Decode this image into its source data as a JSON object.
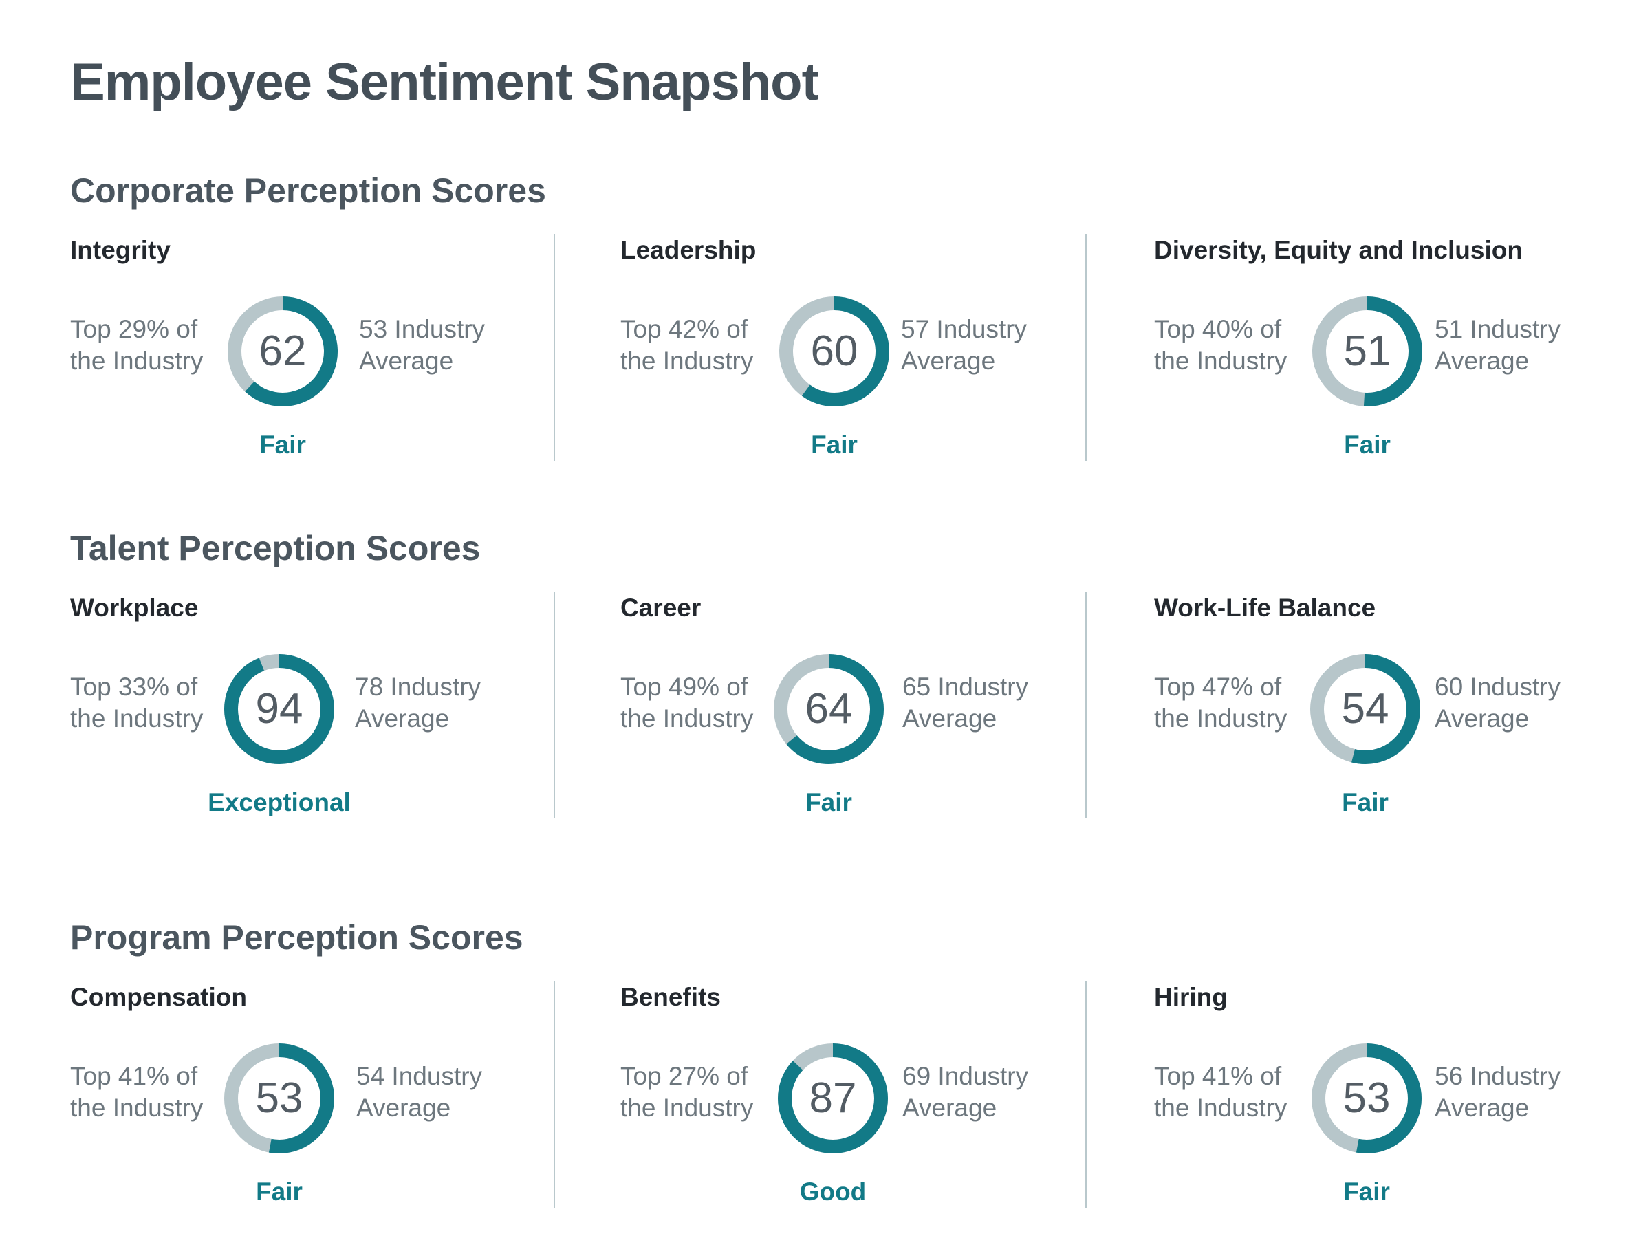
{
  "title": "Employee Sentiment Snapshot",
  "colors": {
    "accent": "#127a87",
    "track": "#b7c6ca",
    "divider": "#b9c8cc"
  },
  "sections": [
    {
      "title": "Corporate Perception Scores",
      "metrics": [
        {
          "name": "Integrity",
          "rank_line1": "Top 29% of",
          "rank_line2": "the Industry",
          "score": 62,
          "score_label": "62",
          "avg_line1": "53 Industry",
          "avg_line2": "Average",
          "rating": "Fair"
        },
        {
          "name": "Leadership",
          "rank_line1": "Top 42% of",
          "rank_line2": "the Industry",
          "score": 60,
          "score_label": "60",
          "avg_line1": "57 Industry",
          "avg_line2": "Average",
          "rating": "Fair"
        },
        {
          "name": "Diversity, Equity and Inclusion",
          "rank_line1": "Top 40% of",
          "rank_line2": "the Industry",
          "score": 51,
          "score_label": "51",
          "avg_line1": "51 Industry",
          "avg_line2": "Average",
          "rating": "Fair"
        }
      ]
    },
    {
      "title": "Talent Perception Scores",
      "metrics": [
        {
          "name": "Workplace",
          "rank_line1": "Top 33% of",
          "rank_line2": "the Industry",
          "score": 94,
          "score_label": "94",
          "avg_line1": "78 Industry",
          "avg_line2": "Average",
          "rating": "Exceptional"
        },
        {
          "name": "Career",
          "rank_line1": "Top 49% of",
          "rank_line2": "the Industry",
          "score": 64,
          "score_label": "64",
          "avg_line1": "65 Industry",
          "avg_line2": "Average",
          "rating": "Fair"
        },
        {
          "name": "Work-Life Balance",
          "rank_line1": "Top 47% of",
          "rank_line2": "the Industry",
          "score": 54,
          "score_label": "54",
          "avg_line1": "60 Industry",
          "avg_line2": "Average",
          "rating": "Fair"
        }
      ]
    },
    {
      "title": "Program Perception Scores",
      "metrics": [
        {
          "name": "Compensation",
          "rank_line1": "Top 41% of",
          "rank_line2": "the Industry",
          "score": 53,
          "score_label": "53",
          "avg_line1": "54 Industry",
          "avg_line2": "Average",
          "rating": "Fair"
        },
        {
          "name": "Benefits",
          "rank_line1": "Top 27% of",
          "rank_line2": "the Industry",
          "score": 87,
          "score_label": "87",
          "avg_line1": "69 Industry",
          "avg_line2": "Average",
          "rating": "Good"
        },
        {
          "name": "Hiring",
          "rank_line1": "Top 41% of",
          "rank_line2": "the Industry",
          "score": 53,
          "score_label": "53",
          "avg_line1": "56 Industry",
          "avg_line2": "Average",
          "rating": "Fair"
        }
      ]
    }
  ],
  "chart_data": {
    "type": "donut",
    "scale_max": 100,
    "categories": [
      "Integrity",
      "Leadership",
      "Diversity, Equity and Inclusion",
      "Workplace",
      "Career",
      "Work-Life Balance",
      "Compensation",
      "Benefits",
      "Hiring"
    ],
    "values": [
      62,
      60,
      51,
      94,
      64,
      54,
      53,
      87,
      53
    ],
    "industry_average": [
      53,
      57,
      51,
      78,
      65,
      60,
      54,
      69,
      56
    ],
    "industry_percentile": [
      "Top 29%",
      "Top 42%",
      "Top 40%",
      "Top 33%",
      "Top 49%",
      "Top 47%",
      "Top 41%",
      "Top 27%",
      "Top 41%"
    ],
    "ratings": [
      "Fair",
      "Fair",
      "Fair",
      "Exceptional",
      "Fair",
      "Fair",
      "Fair",
      "Good",
      "Fair"
    ]
  }
}
